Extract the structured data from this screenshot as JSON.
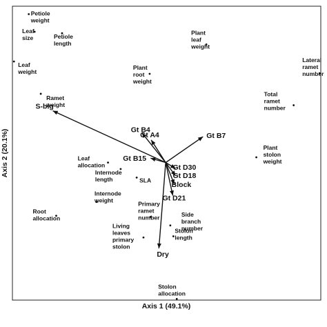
{
  "chart_data": {
    "type": "scatter",
    "xlabel": "Axis 1 (49.1%)",
    "ylabel": "Axis 2 (20.1%)",
    "xlim": [
      0,
      100
    ],
    "ylim": [
      0,
      100
    ],
    "grid": false,
    "points": [
      {
        "label": [
          "Petiole",
          "weight"
        ],
        "x": 5.3,
        "y": 97.3
      },
      {
        "label": [
          "Leaf",
          "size"
        ],
        "x": 7.2,
        "y": 91.3
      },
      {
        "label": [
          "Petiole",
          "length"
        ],
        "x": 16.1,
        "y": 90.8
      },
      {
        "label": [
          "Leaf",
          "weight"
        ],
        "x": 0.5,
        "y": 81.2
      },
      {
        "label": [
          "Ramet",
          "weight"
        ],
        "x": 9.2,
        "y": 70.2
      },
      {
        "label": [
          "Plant",
          "leaf",
          "weight"
        ],
        "x": 62.9,
        "y": 87.0
      },
      {
        "label": [
          "Plant",
          "root",
          "weight"
        ],
        "x": 44.5,
        "y": 77.0
      },
      {
        "label": [
          "Lateral",
          "ramet",
          "number"
        ],
        "x": 99.6,
        "y": 77.2
      },
      {
        "label": [
          "Total",
          "ramet",
          "number"
        ],
        "x": 91.2,
        "y": 66.3
      },
      {
        "label": [
          "Leaf",
          "allocation"
        ],
        "x": 31.0,
        "y": 46.8
      },
      {
        "label": [
          "Internode",
          "length"
        ],
        "x": 35.1,
        "y": 44.6
      },
      {
        "label": [
          "SLA"
        ],
        "x": 40.3,
        "y": 41.7
      },
      {
        "label": [
          "Plant",
          "stolon",
          "weight"
        ],
        "x": 79.1,
        "y": 48.6
      },
      {
        "label": [
          "Internode",
          "weight"
        ],
        "x": 27.3,
        "y": 33.4
      },
      {
        "label": [
          "Root",
          "allocation"
        ],
        "x": 14.2,
        "y": 28.7
      },
      {
        "label": [
          "Primary",
          "ramet",
          "number"
        ],
        "x": 44.8,
        "y": 28.3
      },
      {
        "label": [
          "Side",
          "branch",
          "number"
        ],
        "x": 51.2,
        "y": 25.4
      },
      {
        "label": [
          "Living",
          "leaves",
          "primary",
          "stolon"
        ],
        "x": 42.5,
        "y": 21.3
      },
      {
        "label": [
          "Stolon",
          "length"
        ],
        "x": 52.2,
        "y": 21.7
      },
      {
        "label": [
          "Stolon",
          "allocation"
        ],
        "x": 53.3,
        "y": 0.4
      }
    ],
    "vectors": [
      {
        "label": "S-big",
        "x": 13.1,
        "y": 64.4
      },
      {
        "label": "Gt B4",
        "x": 42.0,
        "y": 56.9
      },
      {
        "label": "Gt A4",
        "x": 45.0,
        "y": 54.5
      },
      {
        "label": "Gt B7",
        "x": 61.8,
        "y": 55.6
      },
      {
        "label": "Gt B15",
        "x": 44.8,
        "y": 48.3
      },
      {
        "label": "Gt D30",
        "x": 52.9,
        "y": 44.8
      },
      {
        "label": "Gt D18",
        "x": 52.9,
        "y": 42.3
      },
      {
        "label": "Block",
        "x": 52.5,
        "y": 39.4
      },
      {
        "label": "Gt D21",
        "x": 52.0,
        "y": 35.6
      },
      {
        "label": "Dry",
        "x": 47.5,
        "y": 17.6
      }
    ],
    "vector_origin": {
      "x": 49.7,
      "y": 46.8
    }
  }
}
